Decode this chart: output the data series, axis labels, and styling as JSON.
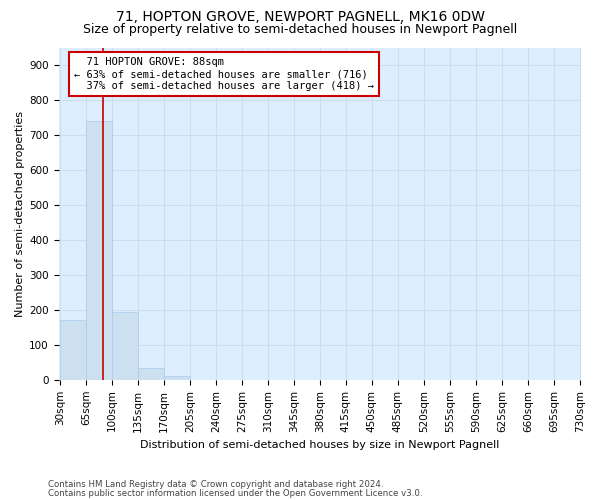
{
  "title": "71, HOPTON GROVE, NEWPORT PAGNELL, MK16 0DW",
  "subtitle": "Size of property relative to semi-detached houses in Newport Pagnell",
  "xlabel": "Distribution of semi-detached houses by size in Newport Pagnell",
  "ylabel": "Number of semi-detached properties",
  "footnote1": "Contains HM Land Registry data © Crown copyright and database right 2024.",
  "footnote2": "Contains public sector information licensed under the Open Government Licence v3.0.",
  "bar_labels": [
    "30sqm",
    "65sqm",
    "100sqm",
    "135sqm",
    "170sqm",
    "205sqm",
    "240sqm",
    "275sqm",
    "310sqm",
    "345sqm",
    "380sqm",
    "415sqm",
    "450sqm",
    "485sqm",
    "520sqm",
    "555sqm",
    "590sqm",
    "625sqm",
    "660sqm",
    "695sqm",
    "730sqm"
  ],
  "bar_values": [
    170,
    740,
    195,
    35,
    10,
    0,
    0,
    0,
    0,
    0,
    0,
    0,
    0,
    0,
    0,
    0,
    0,
    0,
    0,
    0
  ],
  "bar_color": "#cce0f0",
  "bar_edge_color": "#aaccee",
  "grid_color": "#ccddee",
  "background_color": "#ddeeff",
  "property_label": "71 HOPTON GROVE: 88sqm",
  "pct_smaller": 63,
  "pct_larger": 37,
  "count_smaller": 716,
  "count_larger": 418,
  "redline_color": "#cc0000",
  "annotation_box_color": "#cc0000",
  "ylim": [
    0,
    950
  ],
  "yticks": [
    0,
    100,
    200,
    300,
    400,
    500,
    600,
    700,
    800,
    900
  ],
  "title_fontsize": 10,
  "subtitle_fontsize": 9,
  "axis_label_fontsize": 8,
  "tick_fontsize": 7.5,
  "annotation_fontsize": 7.5
}
